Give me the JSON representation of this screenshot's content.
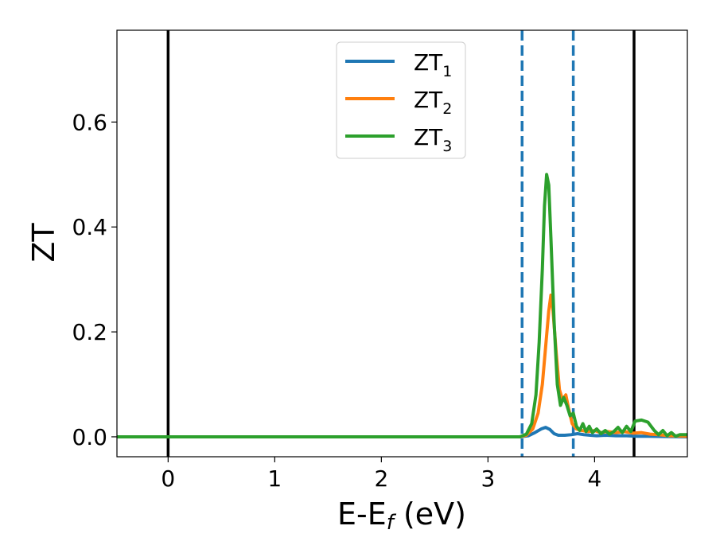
{
  "chart_data": {
    "type": "line",
    "xlabel": "E-E",
    "xlabel_subscript": "f",
    "xlabel_unit": " (eV)",
    "ylabel": "ZT",
    "xlim": [
      -0.48,
      4.87
    ],
    "ylim": [
      -0.038,
      0.775
    ],
    "xticks": [
      0,
      1,
      2,
      3,
      4
    ],
    "yticks": [
      0.0,
      0.2,
      0.4,
      0.6
    ],
    "ytick_labels": [
      "0.0",
      "0.2",
      "0.4",
      "0.6"
    ],
    "xtick_labels": [
      "0",
      "1",
      "2",
      "3",
      "4"
    ],
    "grid": false,
    "legend_position": "top-center",
    "vlines": [
      {
        "x": 0.0,
        "style": "solid",
        "color": "#000000"
      },
      {
        "x": 4.37,
        "style": "solid",
        "color": "#000000"
      },
      {
        "x": 3.32,
        "style": "dashed",
        "color": "#1f77b4"
      },
      {
        "x": 3.8,
        "style": "dashed",
        "color": "#1f77b4"
      }
    ],
    "series": [
      {
        "name": "ZT",
        "subscript": "1",
        "color": "#1f77b4",
        "points": [
          [
            -0.48,
            0
          ],
          [
            3.3,
            0
          ],
          [
            3.38,
            0.002
          ],
          [
            3.44,
            0.008
          ],
          [
            3.5,
            0.015
          ],
          [
            3.54,
            0.018
          ],
          [
            3.58,
            0.014
          ],
          [
            3.62,
            0.006
          ],
          [
            3.66,
            0.003
          ],
          [
            3.72,
            0.003
          ],
          [
            3.78,
            0.004
          ],
          [
            3.84,
            0.006
          ],
          [
            3.9,
            0.004
          ],
          [
            3.96,
            0.003
          ],
          [
            4.02,
            0.002
          ],
          [
            4.1,
            0.003
          ],
          [
            4.2,
            0.002
          ],
          [
            4.3,
            0.002
          ],
          [
            4.4,
            0.001
          ],
          [
            4.5,
            0.001
          ],
          [
            4.87,
            0
          ]
        ]
      },
      {
        "name": "ZT",
        "subscript": "2",
        "color": "#ff7f0e",
        "points": [
          [
            -0.48,
            0
          ],
          [
            3.3,
            0
          ],
          [
            3.36,
            0.003
          ],
          [
            3.42,
            0.015
          ],
          [
            3.47,
            0.045
          ],
          [
            3.51,
            0.1
          ],
          [
            3.54,
            0.17
          ],
          [
            3.57,
            0.24
          ],
          [
            3.59,
            0.27
          ],
          [
            3.61,
            0.24
          ],
          [
            3.64,
            0.16
          ],
          [
            3.67,
            0.09
          ],
          [
            3.7,
            0.07
          ],
          [
            3.73,
            0.08
          ],
          [
            3.76,
            0.05
          ],
          [
            3.79,
            0.025
          ],
          [
            3.83,
            0.015
          ],
          [
            3.88,
            0.012
          ],
          [
            3.94,
            0.01
          ],
          [
            4.0,
            0.012
          ],
          [
            4.06,
            0.008
          ],
          [
            4.12,
            0.01
          ],
          [
            4.2,
            0.008
          ],
          [
            4.28,
            0.01
          ],
          [
            4.36,
            0.007
          ],
          [
            4.44,
            0.008
          ],
          [
            4.52,
            0.005
          ],
          [
            4.6,
            0.004
          ],
          [
            4.7,
            0.002
          ],
          [
            4.87,
            0.001
          ]
        ]
      },
      {
        "name": "ZT",
        "subscript": "3",
        "color": "#2ca02c",
        "points": [
          [
            -0.48,
            0
          ],
          [
            3.3,
            0
          ],
          [
            3.36,
            0.005
          ],
          [
            3.41,
            0.025
          ],
          [
            3.45,
            0.08
          ],
          [
            3.48,
            0.18
          ],
          [
            3.51,
            0.32
          ],
          [
            3.53,
            0.44
          ],
          [
            3.55,
            0.5
          ],
          [
            3.57,
            0.48
          ],
          [
            3.59,
            0.38
          ],
          [
            3.62,
            0.22
          ],
          [
            3.65,
            0.1
          ],
          [
            3.68,
            0.06
          ],
          [
            3.71,
            0.075
          ],
          [
            3.74,
            0.06
          ],
          [
            3.77,
            0.04
          ],
          [
            3.8,
            0.045
          ],
          [
            3.83,
            0.02
          ],
          [
            3.86,
            0.012
          ],
          [
            3.89,
            0.025
          ],
          [
            3.92,
            0.01
          ],
          [
            3.95,
            0.02
          ],
          [
            3.98,
            0.008
          ],
          [
            4.02,
            0.015
          ],
          [
            4.06,
            0.006
          ],
          [
            4.1,
            0.012
          ],
          [
            4.14,
            0.005
          ],
          [
            4.18,
            0.01
          ],
          [
            4.22,
            0.018
          ],
          [
            4.26,
            0.008
          ],
          [
            4.3,
            0.02
          ],
          [
            4.34,
            0.01
          ],
          [
            4.38,
            0.03
          ],
          [
            4.44,
            0.032
          ],
          [
            4.5,
            0.028
          ],
          [
            4.56,
            0.012
          ],
          [
            4.6,
            0.004
          ],
          [
            4.64,
            0.012
          ],
          [
            4.68,
            0.002
          ],
          [
            4.72,
            0.008
          ],
          [
            4.76,
            0.001
          ],
          [
            4.8,
            0.004
          ],
          [
            4.87,
            0.004
          ]
        ]
      }
    ]
  }
}
